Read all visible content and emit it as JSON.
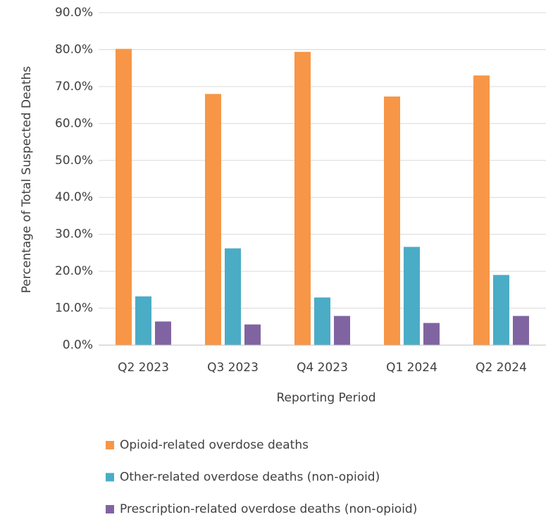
{
  "chart_data": {
    "type": "bar",
    "x_label": "Reporting Period",
    "y_label": "Percentage of Total Suspected Deaths",
    "categories": [
      "Q2 2023",
      "Q3 2023",
      "Q4 2023",
      "Q1 2024",
      "Q2 2024"
    ],
    "series": [
      {
        "name": "Opioid-related overdose deaths",
        "color": "#f79646",
        "values": [
          80.2,
          68.0,
          79.4,
          67.3,
          73.0
        ]
      },
      {
        "name": "Other-related overdose deaths (non-opioid)",
        "color": "#4bacc6",
        "values": [
          13.2,
          26.2,
          12.9,
          26.6,
          19.0
        ]
      },
      {
        "name": "Prescription-related overdose deaths (non-opioid)",
        "color": "#8064a2",
        "values": [
          6.4,
          5.6,
          7.9,
          6.0,
          7.9
        ]
      }
    ],
    "ylim": [
      0,
      90
    ],
    "yticks": [
      {
        "value": 0,
        "label": "0.0%"
      },
      {
        "value": 10,
        "label": "10.0%"
      },
      {
        "value": 20,
        "label": "20.0%"
      },
      {
        "value": 30,
        "label": "30.0%"
      },
      {
        "value": 40,
        "label": "40.0%"
      },
      {
        "value": 50,
        "label": "50.0%"
      },
      {
        "value": 60,
        "label": "60.0%"
      },
      {
        "value": 70,
        "label": "70.0%"
      },
      {
        "value": 80,
        "label": "80.0%"
      },
      {
        "value": 90,
        "label": "90.0%"
      }
    ],
    "grid": true,
    "legend": "bottom"
  }
}
